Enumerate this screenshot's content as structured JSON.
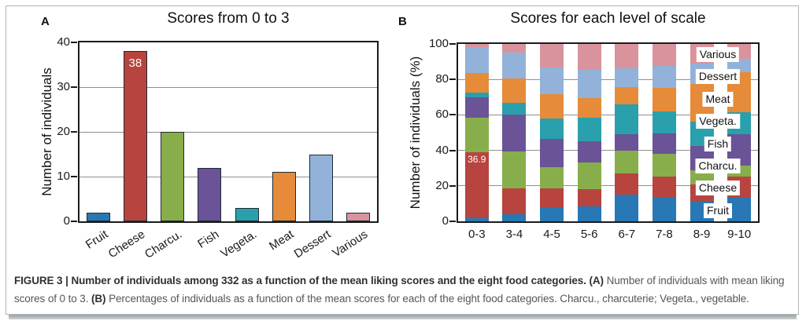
{
  "figure": {
    "panel_a_letter": "A",
    "panel_b_letter": "B"
  },
  "chart_data": [
    {
      "type": "bar",
      "panel": "A",
      "title": "Scores from 0 to 3",
      "xlabel": "",
      "ylabel": "Number of individuals",
      "categories": [
        "Fruit",
        "Cheese",
        "Charcu.",
        "Fish",
        "Vegeta.",
        "Meat",
        "Dessert",
        "Various"
      ],
      "values": [
        2,
        38,
        20,
        12,
        3,
        11,
        15,
        2
      ],
      "colors": [
        "#2778b4",
        "#b7443f",
        "#88ae4b",
        "#6a5397",
        "#29a0ac",
        "#e68b39",
        "#93b2d9",
        "#d9939c"
      ],
      "bar_outline_color": "#1c2b36",
      "yticks": [
        0,
        10,
        20,
        30,
        40
      ],
      "ylim": [
        0,
        40
      ],
      "grid": true,
      "annotations": [
        {
          "category": "Cheese",
          "text": "38"
        }
      ]
    },
    {
      "type": "stacked-bar",
      "panel": "B",
      "title": "Scores for each level of scale",
      "xlabel": "",
      "ylabel": "Number of individuals (%)",
      "categories": [
        "0-3",
        "3-4",
        "4-5",
        "5-6",
        "6-7",
        "7-8",
        "8-9",
        "9-10"
      ],
      "series": [
        {
          "name": "Fruit",
          "color": "#2778b4",
          "values": [
            1.9,
            4.2,
            7.8,
            8.2,
            14.9,
            13.8,
            11.6,
            13.5
          ]
        },
        {
          "name": "Cheese",
          "color": "#b7443f",
          "values": [
            36.9,
            14.2,
            10.6,
            10.0,
            12.3,
            11.5,
            9.2,
            11.6
          ]
        },
        {
          "name": "Charcu.",
          "color": "#88ae4b",
          "values": [
            19.4,
            20.9,
            12.2,
            14.9,
            12.8,
            12.7,
            8.0,
            6.5
          ]
        },
        {
          "name": "Fish",
          "color": "#6a5397",
          "values": [
            11.7,
            21.1,
            16.0,
            12.0,
            9.0,
            11.5,
            13.8,
            17.7
          ]
        },
        {
          "name": "Vegeta.",
          "color": "#29a0ac",
          "values": [
            2.9,
            6.3,
            11.6,
            13.4,
            17.0,
            12.3,
            13.8,
            12.1
          ]
        },
        {
          "name": "Meat",
          "color": "#e68b39",
          "values": [
            10.7,
            13.9,
            13.7,
            10.9,
            9.8,
            13.4,
            21.1,
            22.5
          ]
        },
        {
          "name": "Dessert",
          "color": "#93b2d9",
          "values": [
            14.6,
            14.6,
            15.0,
            16.0,
            10.5,
            12.5,
            11.6,
            7.6
          ]
        },
        {
          "name": "Various",
          "color": "#d9939c",
          "values": [
            1.9,
            4.8,
            13.1,
            14.6,
            13.7,
            12.3,
            10.9,
            8.5
          ]
        }
      ],
      "yticks": [
        0,
        20,
        40,
        60,
        80,
        100
      ],
      "ylim": [
        0,
        100
      ],
      "grid": true,
      "legend": [
        "Various",
        "Dessert",
        "Meat",
        "Vegeta.",
        "Fish",
        "Charcu.",
        "Cheese",
        "Fruit"
      ],
      "legend_position": "overlay-right",
      "annotations": [
        {
          "category": "0-3",
          "series": "Cheese",
          "text": "36.9"
        }
      ]
    }
  ],
  "caption": {
    "parts": [
      {
        "text": "FIGURE 3 | Number of individuals among 332 as a function of the mean liking scores and the eight food categories.",
        "bold": true
      },
      {
        "text": " ",
        "bold": false
      },
      {
        "text": "(A)",
        "bold": true
      },
      {
        "text": " Number of individuals with mean liking scores of 0 to 3. ",
        "bold": false
      },
      {
        "text": "(B)",
        "bold": true
      },
      {
        "text": " Percentages of individuals as a function of the mean scores for each of the eight food categories. Charcu., charcuterie; Vegeta., vegetable.",
        "bold": false
      }
    ]
  }
}
